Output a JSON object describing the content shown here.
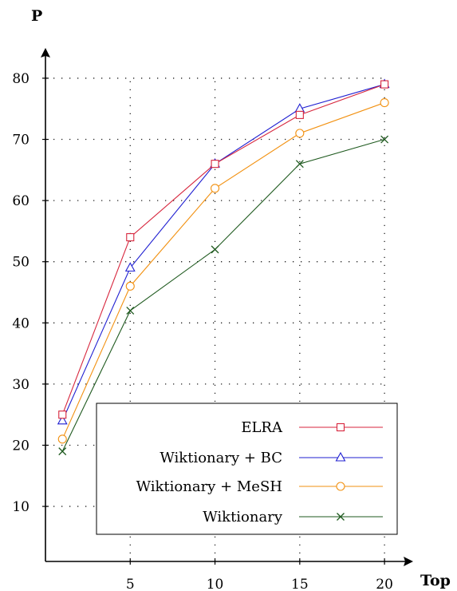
{
  "chart_data": {
    "type": "line",
    "title": "",
    "xlabel": "Top",
    "ylabel": "P",
    "x": [
      1,
      5,
      10,
      15,
      20
    ],
    "xticks": [
      5,
      10,
      15,
      20
    ],
    "yticks": [
      10,
      20,
      30,
      40,
      50,
      60,
      70,
      80
    ],
    "xlim": [
      0,
      21.5
    ],
    "ylim": [
      1,
      89
    ],
    "grid": true,
    "legend_position": "bottom-right",
    "series": [
      {
        "name": "ELRA",
        "color": "#d7263d",
        "marker": "square",
        "values": [
          25,
          54,
          66,
          74,
          79
        ]
      },
      {
        "name": "Wiktionary + BC",
        "color": "#1f1fd1",
        "marker": "triangle",
        "values": [
          24,
          49,
          66,
          75,
          79
        ]
      },
      {
        "name": "Wiktionary + MeSH",
        "color": "#f29111",
        "marker": "circle",
        "values": [
          21,
          46,
          62,
          71,
          76
        ]
      },
      {
        "name": "Wiktionary",
        "color": "#1f5a1f",
        "marker": "cross",
        "values": [
          19,
          42,
          52,
          66,
          70
        ]
      }
    ]
  }
}
